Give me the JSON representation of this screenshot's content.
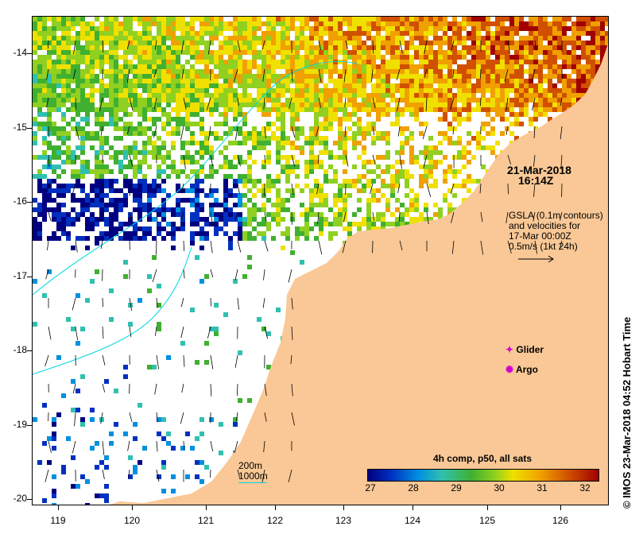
{
  "map": {
    "lat_labels": [
      "-14",
      "-15",
      "-16",
      "-17",
      "-18",
      "-19",
      "-20"
    ],
    "lon_labels": [
      "119",
      "120",
      "121",
      "122",
      "123",
      "124",
      "125",
      "126"
    ],
    "colors": {
      "land": "#f9c896",
      "ocean_nodata": "#ffffff",
      "contour": "#00d8e0",
      "arrow": "#000000",
      "marker": "#d000d0"
    }
  },
  "annotations": {
    "datetime_line1": "21-Mar-2018",
    "datetime_line2": "16:14Z",
    "gsla_line1": "GSLA (0.1m contours)",
    "gsla_line2": "and velocities for",
    "gsla_line3": "17-Mar 00:00Z",
    "gsla_line4": "0.5m/s (1kt 24h)",
    "glider_label": "Glider",
    "argo_label": "Argo",
    "depth_200": "200m",
    "depth_1000": "1000m"
  },
  "colorbar": {
    "title": "4h comp, p50, all sats",
    "ticks": [
      "27",
      "28",
      "29",
      "30",
      "31",
      "32"
    ]
  },
  "credit": "© IMOS 23-Mar-2018 04:52 Hobart Time"
}
